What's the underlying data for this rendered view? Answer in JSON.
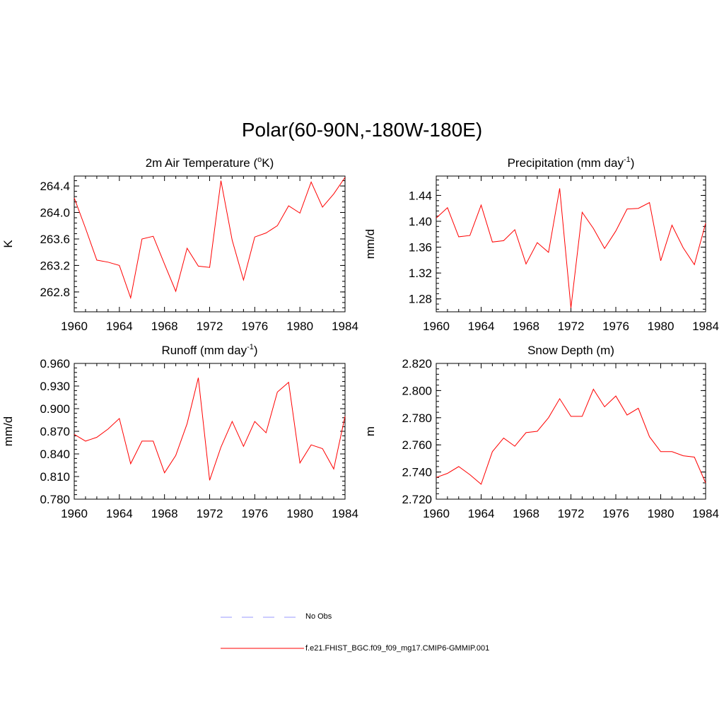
{
  "title": "Polar(60-90N,-180W-180E)",
  "colors": {
    "model": "#ff0000",
    "obs": "#9999ff",
    "axis": "#000000"
  },
  "legend": [
    {
      "label": "No Obs",
      "style": "dashed",
      "color": "#9999ff"
    },
    {
      "label": "f.e21.FHIST_BGC.f09_f09_mg17.CMIP6-GMMIP.001",
      "style": "solid",
      "color": "#ff0000"
    }
  ],
  "chart_data": [
    {
      "type": "line",
      "title": "2m Air Temperature (°K)",
      "title_base": "2m Air Temperature (",
      "title_sup": "o",
      "title_tail": "K)",
      "ylabel": "K",
      "xlim": [
        1960,
        1984
      ],
      "ylim": [
        262.5,
        264.55
      ],
      "xticks": [
        1960,
        1964,
        1968,
        1972,
        1976,
        1980,
        1984
      ],
      "yticks": [
        "262.8",
        "263.2",
        "263.6",
        "264.0",
        "264.4"
      ],
      "x": [
        1960,
        1961,
        1962,
        1963,
        1964,
        1965,
        1966,
        1967,
        1968,
        1969,
        1970,
        1971,
        1972,
        1973,
        1974,
        1975,
        1976,
        1977,
        1978,
        1979,
        1980,
        1981,
        1982,
        1983,
        1984
      ],
      "series": [
        {
          "name": "f.e21.FHIST_BGC.f09_f09_mg17.CMIP6-GMMIP.001",
          "values": [
            264.22,
            263.76,
            263.28,
            263.25,
            263.2,
            262.71,
            263.6,
            263.64,
            263.22,
            262.81,
            263.46,
            263.19,
            263.17,
            264.48,
            263.58,
            262.98,
            263.63,
            263.69,
            263.8,
            264.1,
            263.99,
            264.46,
            264.08,
            264.28,
            264.53
          ]
        }
      ]
    },
    {
      "type": "line",
      "title": "Precipitation (mm day-1)",
      "title_base": "Precipitation (mm day",
      "title_sup": "-1",
      "title_tail": ")",
      "ylabel": "mm/d",
      "xlim": [
        1960,
        1984
      ],
      "ylim": [
        1.26,
        1.47
      ],
      "xticks": [
        1960,
        1964,
        1968,
        1972,
        1976,
        1980,
        1984
      ],
      "yticks": [
        "1.28",
        "1.32",
        "1.36",
        "1.40",
        "1.44"
      ],
      "x": [
        1960,
        1961,
        1962,
        1963,
        1964,
        1965,
        1966,
        1967,
        1968,
        1969,
        1970,
        1971,
        1972,
        1973,
        1974,
        1975,
        1976,
        1977,
        1978,
        1979,
        1980,
        1981,
        1982,
        1983,
        1984
      ],
      "series": [
        {
          "name": "f.e21.FHIST_BGC.f09_f09_mg17.CMIP6-GMMIP.001",
          "values": [
            1.405,
            1.421,
            1.376,
            1.378,
            1.425,
            1.368,
            1.37,
            1.387,
            1.334,
            1.367,
            1.352,
            1.451,
            1.266,
            1.414,
            1.389,
            1.358,
            1.385,
            1.419,
            1.42,
            1.429,
            1.339,
            1.394,
            1.359,
            1.333,
            1.397
          ]
        }
      ]
    },
    {
      "type": "line",
      "title": "Runoff (mm day-1)",
      "title_base": "Runoff (mm day",
      "title_sup": "-1",
      "title_tail": ")",
      "ylabel": "mm/d",
      "xlim": [
        1960,
        1984
      ],
      "ylim": [
        0.78,
        0.96
      ],
      "xticks": [
        1960,
        1964,
        1968,
        1972,
        1976,
        1980,
        1984
      ],
      "yticks": [
        "0.780",
        "0.810",
        "0.840",
        "0.870",
        "0.900",
        "0.930",
        "0.960"
      ],
      "x": [
        1960,
        1961,
        1962,
        1963,
        1964,
        1965,
        1966,
        1967,
        1968,
        1969,
        1970,
        1971,
        1972,
        1973,
        1974,
        1975,
        1976,
        1977,
        1978,
        1979,
        1980,
        1981,
        1982,
        1983,
        1984
      ],
      "series": [
        {
          "name": "f.e21.FHIST_BGC.f09_f09_mg17.CMIP6-GMMIP.001",
          "values": [
            0.866,
            0.857,
            0.862,
            0.873,
            0.887,
            0.827,
            0.857,
            0.857,
            0.815,
            0.838,
            0.88,
            0.941,
            0.805,
            0.849,
            0.883,
            0.85,
            0.883,
            0.868,
            0.922,
            0.935,
            0.828,
            0.852,
            0.847,
            0.82,
            0.89
          ]
        }
      ]
    },
    {
      "type": "line",
      "title": "Snow Depth (m)",
      "title_base": "Snow Depth (m)",
      "title_sup": "",
      "title_tail": "",
      "ylabel": "m",
      "xlim": [
        1960,
        1984
      ],
      "ylim": [
        2.72,
        2.82
      ],
      "xticks": [
        1960,
        1964,
        1968,
        1972,
        1976,
        1980,
        1984
      ],
      "yticks": [
        "2.720",
        "2.740",
        "2.760",
        "2.780",
        "2.800",
        "2.820"
      ],
      "x": [
        1960,
        1961,
        1962,
        1963,
        1964,
        1965,
        1966,
        1967,
        1968,
        1969,
        1970,
        1971,
        1972,
        1973,
        1974,
        1975,
        1976,
        1977,
        1978,
        1979,
        1980,
        1981,
        1982,
        1983,
        1984
      ],
      "series": [
        {
          "name": "f.e21.FHIST_BGC.f09_f09_mg17.CMIP6-GMMIP.001",
          "values": [
            2.736,
            2.739,
            2.744,
            2.738,
            2.731,
            2.755,
            2.765,
            2.759,
            2.769,
            2.77,
            2.78,
            2.794,
            2.781,
            2.781,
            2.801,
            2.788,
            2.796,
            2.782,
            2.787,
            2.766,
            2.755,
            2.755,
            2.752,
            2.751,
            2.732
          ]
        }
      ]
    }
  ]
}
